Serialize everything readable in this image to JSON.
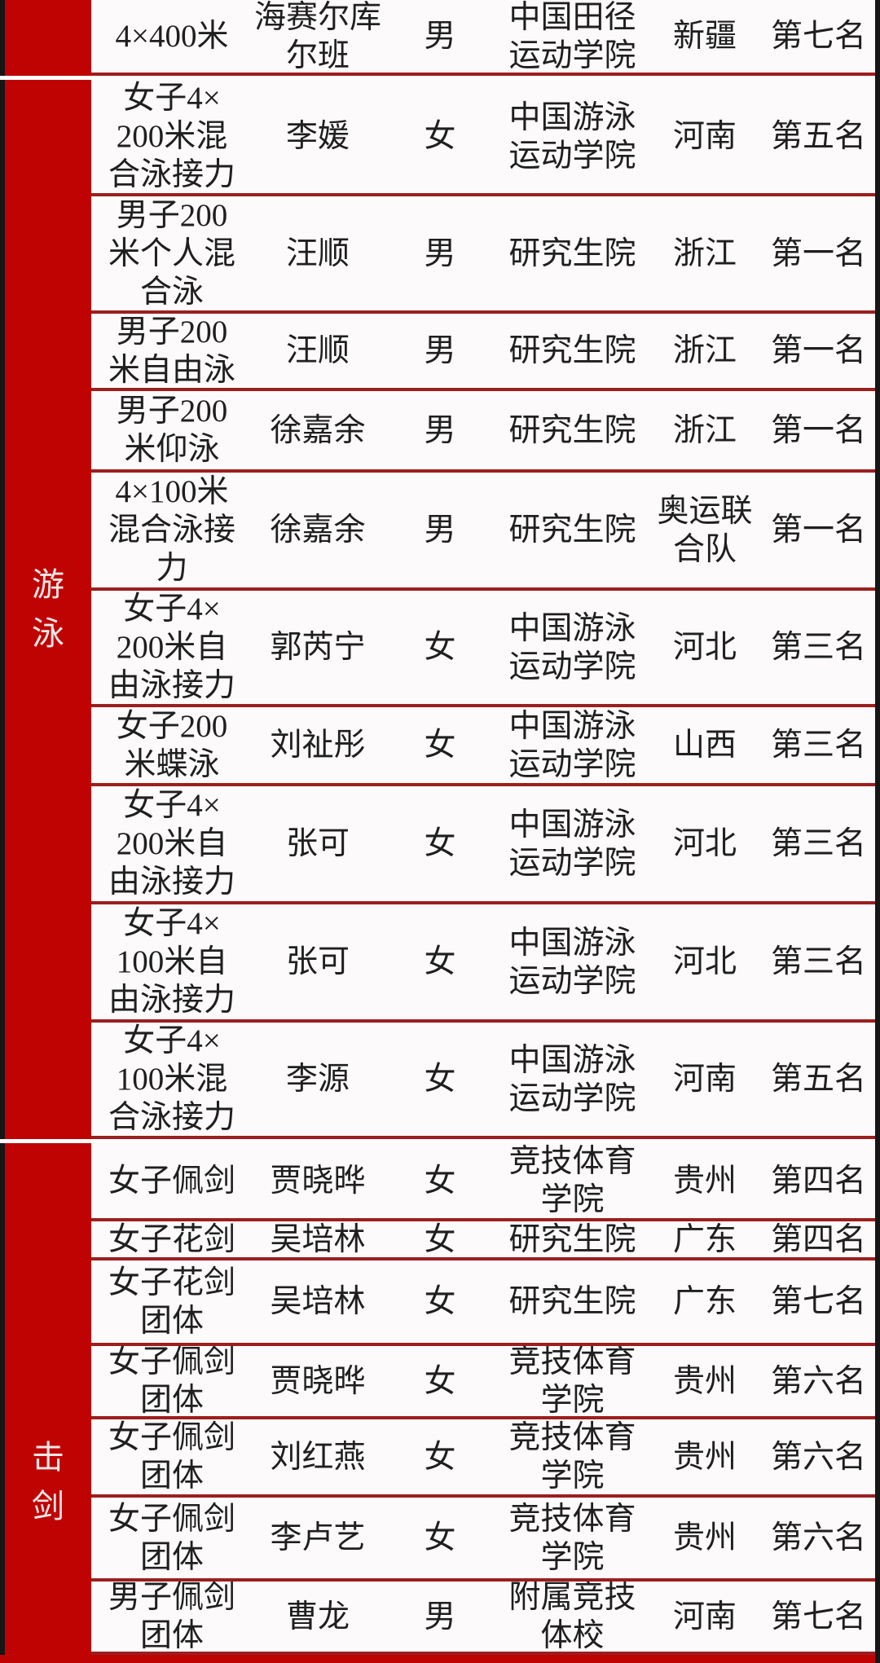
{
  "colors": {
    "sidebar_red": "#bf0303",
    "divider_red": "#9b1f1f",
    "edge_black": "#161616",
    "cell_background": "#fcfafa",
    "text": "#1f1f1f",
    "sidebar_label_text": "#f6e7e7"
  },
  "sections": [
    {
      "label": "",
      "rows": [
        {
          "event": "4×400米",
          "name": "海赛尔库\n尔班",
          "gender": "男",
          "school": "中国田径\n运动学院",
          "province": "新疆",
          "rank": "第七名"
        }
      ]
    },
    {
      "label": "游泳",
      "rows": [
        {
          "event": "女子4×\n200米混\n合泳接力",
          "name": "李媛",
          "gender": "女",
          "school": "中国游泳\n运动学院",
          "province": "河南",
          "rank": "第五名"
        },
        {
          "event": "男子200\n米个人混\n合泳",
          "name": "汪顺",
          "gender": "男",
          "school": "研究生院",
          "province": "浙江",
          "rank": "第一名"
        },
        {
          "event": "男子200\n米自由泳",
          "name": "汪顺",
          "gender": "男",
          "school": "研究生院",
          "province": "浙江",
          "rank": "第一名"
        },
        {
          "event": "男子200\n米仰泳",
          "name": "徐嘉余",
          "gender": "男",
          "school": "研究生院",
          "province": "浙江",
          "rank": "第一名"
        },
        {
          "event": "4×100米\n混合泳接\n力",
          "name": "徐嘉余",
          "gender": "男",
          "school": "研究生院",
          "province": "奥运联\n合队",
          "rank": "第一名"
        },
        {
          "event": "女子4×\n200米自\n由泳接力",
          "name": "郭芮宁",
          "gender": "女",
          "school": "中国游泳\n运动学院",
          "province": "河北",
          "rank": "第三名"
        },
        {
          "event": "女子200\n米蝶泳",
          "name": "刘祉彤",
          "gender": "女",
          "school": "中国游泳\n运动学院",
          "province": "山西",
          "rank": "第三名"
        },
        {
          "event": "女子4×\n200米自\n由泳接力",
          "name": "张可",
          "gender": "女",
          "school": "中国游泳\n运动学院",
          "province": "河北",
          "rank": "第三名"
        },
        {
          "event": "女子4×\n100米自\n由泳接力",
          "name": "张可",
          "gender": "女",
          "school": "中国游泳\n运动学院",
          "province": "河北",
          "rank": "第三名"
        },
        {
          "event": "女子4×\n100米混\n合泳接力",
          "name": "李源",
          "gender": "女",
          "school": "中国游泳\n运动学院",
          "province": "河南",
          "rank": "第五名"
        }
      ]
    },
    {
      "label": "击剑",
      "rows": [
        {
          "event": "女子佩剑",
          "name": "贾晓晔",
          "gender": "女",
          "school": "竞技体育\n学院",
          "province": "贵州",
          "rank": "第四名"
        },
        {
          "event": "女子花剑",
          "name": "吴培林",
          "gender": "女",
          "school": "研究生院",
          "province": "广东",
          "rank": "第四名"
        },
        {
          "event": "女子花剑\n团体",
          "name": "吴培林",
          "gender": "女",
          "school": "研究生院",
          "province": "广东",
          "rank": "第七名"
        },
        {
          "event": "女子佩剑\n团体",
          "name": "贾晓晔",
          "gender": "女",
          "school": "竞技体育\n学院",
          "province": "贵州",
          "rank": "第六名"
        },
        {
          "event": "女子佩剑\n团体",
          "name": "刘红燕",
          "gender": "女",
          "school": "竞技体育\n学院",
          "province": "贵州",
          "rank": "第六名"
        },
        {
          "event": "女子佩剑\n团体",
          "name": "李卢艺",
          "gender": "女",
          "school": "竞技体育\n学院",
          "province": "贵州",
          "rank": "第六名"
        },
        {
          "event": "男子佩剑\n团体",
          "name": "曹龙",
          "gender": "男",
          "school": "附属竞技\n体校",
          "province": "河南",
          "rank": "第七名"
        }
      ]
    }
  ]
}
